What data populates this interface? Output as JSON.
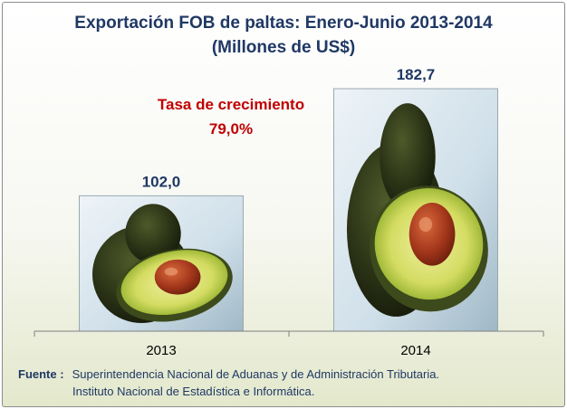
{
  "title_line1": "Exportación FOB de paltas:  Enero-Junio 2013-2014",
  "title_line2": "(Millones de US$)",
  "growth": {
    "label": "Tasa de crecimiento",
    "value": "79,0%"
  },
  "source": {
    "label": "Fuente :",
    "line1": "Superintendencia Nacional de Aduanas y de Administración Tributaria.",
    "line2": "Instituto Nacional de Estadística e Informática."
  },
  "chart_data": {
    "type": "bar",
    "title": "Exportación FOB de paltas:  Enero-Junio 2013-2014",
    "subtitle": "(Millones de US$)",
    "categories": [
      "2013",
      "2014"
    ],
    "values": [
      102.0,
      182.7
    ],
    "value_labels": [
      "102,0",
      "182,7"
    ],
    "ylim": [
      0,
      182.7
    ],
    "grid": false,
    "bar_fill": "avocado-photo",
    "colors": {
      "title": "#1f3864",
      "growth": "#c00000",
      "labels": "#1f3864"
    }
  }
}
